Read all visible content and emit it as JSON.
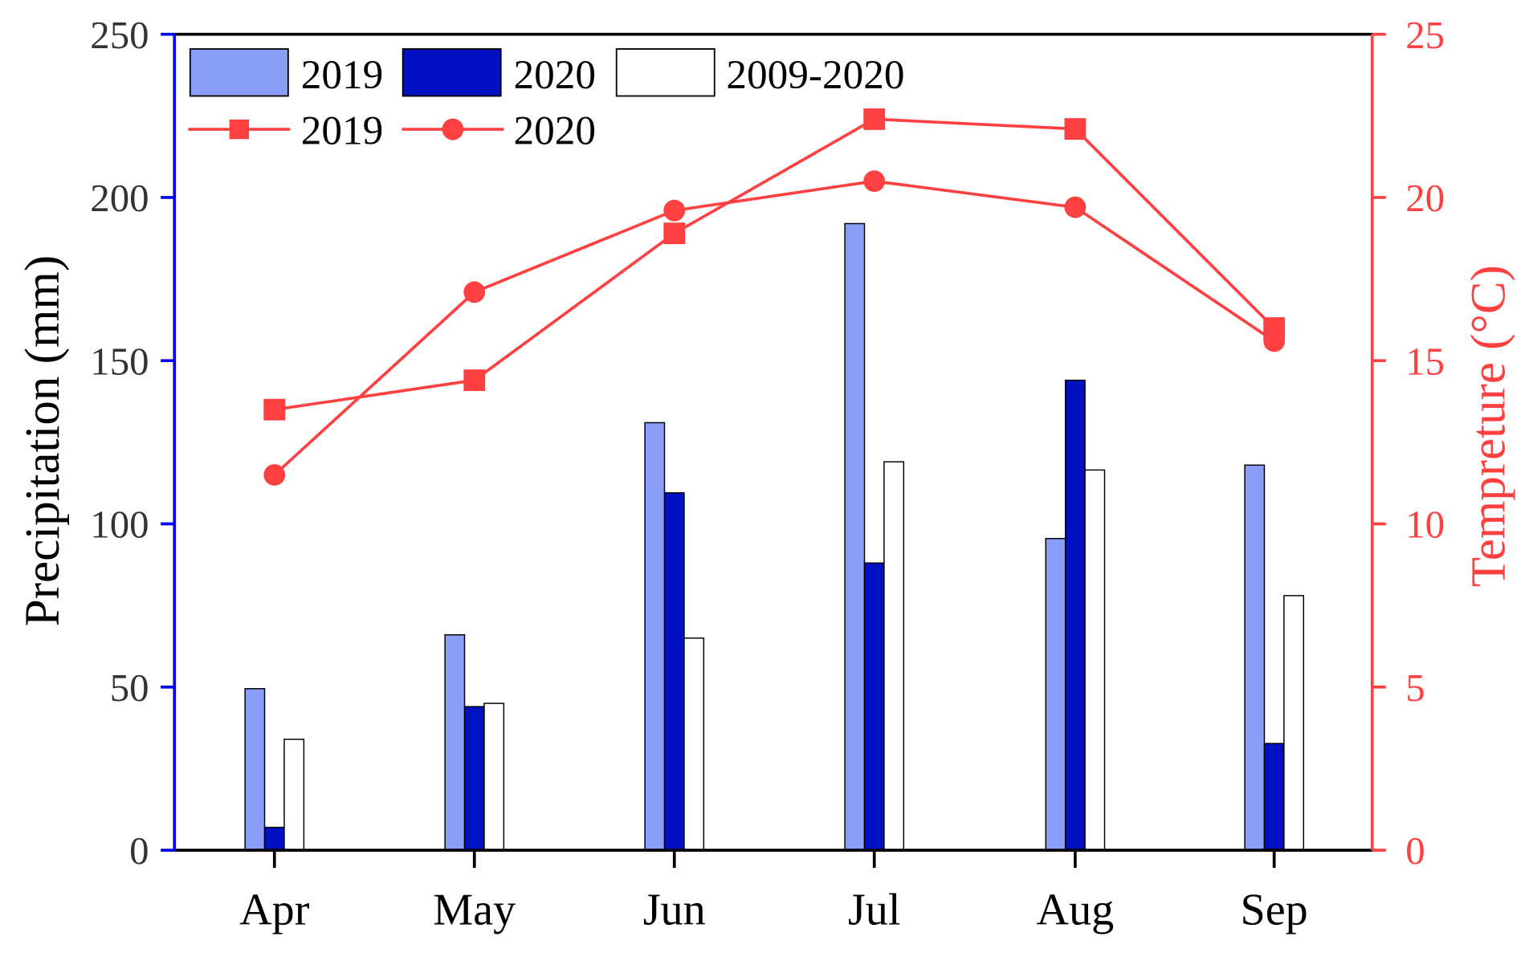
{
  "chart_data": {
    "type": "bar+line",
    "categories": [
      "Apr",
      "May",
      "Jun",
      "Jul",
      "Aug",
      "Sep"
    ],
    "bar_series": [
      {
        "name": "2019",
        "values": [
          49.5,
          66,
          131,
          192,
          95.5,
          118
        ],
        "color": "#8a9ef8"
      },
      {
        "name": "2020",
        "values": [
          7,
          44,
          109.5,
          88,
          144,
          32.7
        ],
        "color": "#0011c2"
      },
      {
        "name": "2009-2020",
        "values": [
          34,
          45,
          65,
          119,
          116.5,
          78
        ],
        "color": "#ffffff"
      }
    ],
    "line_series": [
      {
        "name": "2019",
        "marker": "square",
        "values": [
          13.5,
          14.4,
          18.9,
          22.4,
          22.1,
          16.0
        ],
        "color": "#ff4040"
      },
      {
        "name": "2020",
        "marker": "circle",
        "values": [
          11.5,
          17.1,
          19.6,
          20.5,
          19.7,
          15.6
        ],
        "color": "#ff4040"
      }
    ],
    "ylabel": "Precipitation (mm)",
    "y2label": "Tempreture (°C)",
    "ylim": [
      0,
      250
    ],
    "y2lim": [
      0,
      25
    ],
    "yticks": [
      "0",
      "50",
      "100",
      "150",
      "200",
      "250"
    ],
    "y2ticks": [
      "0",
      "5",
      "10",
      "15",
      "20",
      "25"
    ],
    "left_axis_color": "#0000ee",
    "right_axis_color": "#ff4040",
    "grid": false,
    "legend": "top-left"
  }
}
